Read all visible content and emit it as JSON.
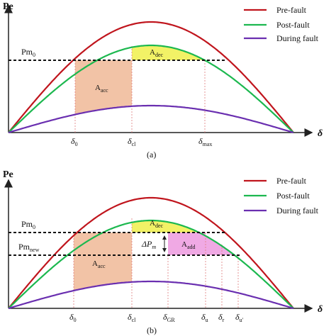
{
  "colors": {
    "pre_fault": "#c0151d",
    "post_fault": "#1cb84f",
    "during_fault": "#6a2fb0",
    "a_acc": "#f2c3a6",
    "a_dec": "#f2f266",
    "a_add": "#f0a9e4",
    "guide": "#e07a7a"
  },
  "panels": [
    {
      "y_axis_label": "Pe",
      "x_axis_label": "δ",
      "caption": "(a)",
      "legend": [
        "Pre-fault",
        "Post-fault",
        "During fault"
      ],
      "pm_labels": [
        {
          "main": "Pm",
          "sub": "0"
        }
      ],
      "area_labels": [
        {
          "main": "A",
          "sub": "acc"
        },
        {
          "main": "A",
          "sub": "dec"
        }
      ],
      "x_ticks": [
        {
          "main": "δ",
          "sub": "0"
        },
        {
          "main": "δ",
          "sub": "cl"
        },
        {
          "main": "δ",
          "sub": "max"
        }
      ]
    },
    {
      "y_axis_label": "Pe",
      "x_axis_label": "δ",
      "caption": "(b)",
      "legend": [
        "Pre-fault",
        "Post-fault",
        "During fault"
      ],
      "pm_labels": [
        {
          "main": "Pm",
          "sub": "0"
        },
        {
          "main": "Pm",
          "sub": "new"
        }
      ],
      "delta_label": {
        "main": "ΔP",
        "sub": "m"
      },
      "area_labels": [
        {
          "main": "A",
          "sub": "acc"
        },
        {
          "main": "A",
          "sub": "dec"
        },
        {
          "main": "A",
          "sub": "add"
        }
      ],
      "x_ticks": [
        {
          "main": "δ",
          "sub": "0"
        },
        {
          "main": "δ",
          "sub": "cl"
        },
        {
          "main": "δ",
          "sub": "GR"
        },
        {
          "main": "δ",
          "sub": "u"
        },
        {
          "main": "δ",
          "sub": "r"
        },
        {
          "main": "δ",
          "sub": "u'"
        }
      ]
    }
  ]
}
